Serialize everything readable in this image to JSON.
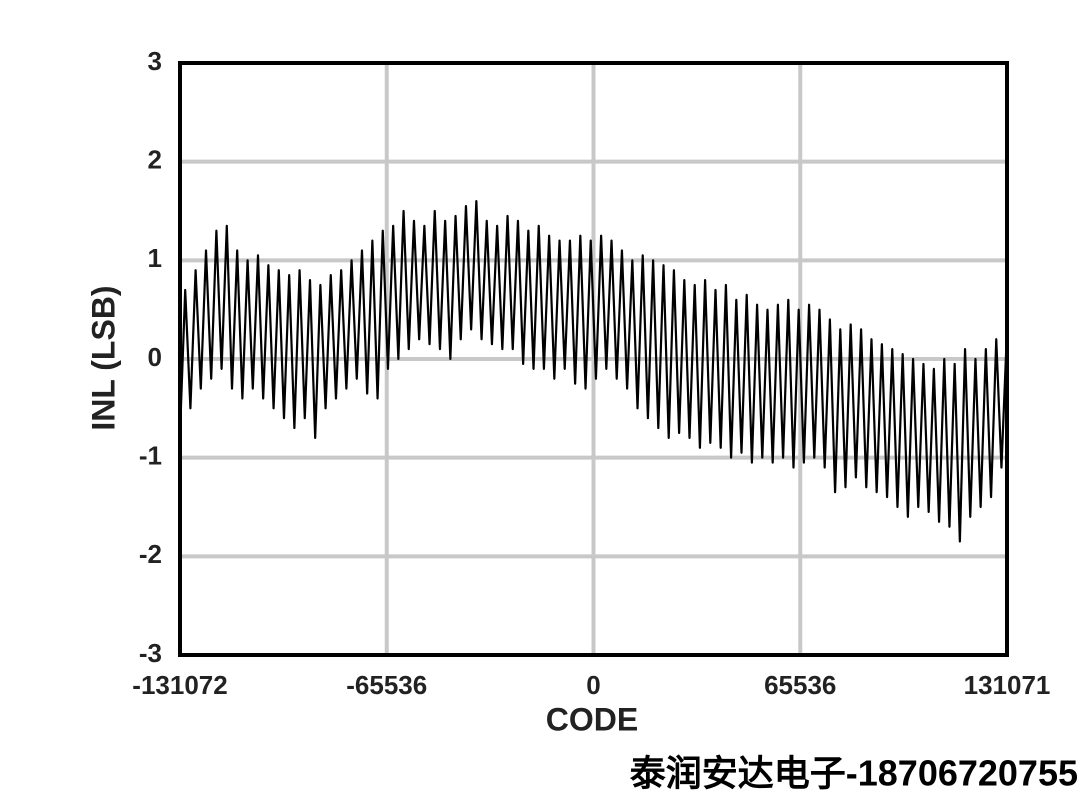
{
  "chart_data": {
    "type": "line",
    "xlabel": "CODE",
    "ylabel": "INL (LSB)",
    "watermark": "泰润安达电子-18706720755",
    "xlim": [
      -131072,
      131071
    ],
    "xticks": [
      -131072,
      -65536,
      0,
      65536,
      131071
    ],
    "ylim": [
      -3,
      3
    ],
    "yticks": [
      -3,
      -2,
      -1,
      0,
      1,
      2,
      3
    ],
    "grid": true,
    "x": [
      -131072,
      -129424,
      -127776,
      -126128,
      -124480,
      -122832,
      -121184,
      -119536,
      -117888,
      -116240,
      -114592,
      -112944,
      -111296,
      -109648,
      -108000,
      -106352,
      -104704,
      -103056,
      -101408,
      -99760,
      -98112,
      -96464,
      -94816,
      -93168,
      -91520,
      -89872,
      -88224,
      -86576,
      -84928,
      -83280,
      -81632,
      -79984,
      -78336,
      -76688,
      -75040,
      -73392,
      -71744,
      -70096,
      -68448,
      -66800,
      -65152,
      -63504,
      -61856,
      -60208,
      -58560,
      -56912,
      -55264,
      -53616,
      -51968,
      -50320,
      -48672,
      -47024,
      -45376,
      -43728,
      -42080,
      -40432,
      -38784,
      -37136,
      -35488,
      -33840,
      -32192,
      -30544,
      -28896,
      -27248,
      -25600,
      -23952,
      -22304,
      -20656,
      -19008,
      -17360,
      -15712,
      -14064,
      -12416,
      -10768,
      -9120,
      -7472,
      -5824,
      -4176,
      -2528,
      -880,
      768,
      2416,
      4064,
      5712,
      7360,
      9008,
      10656,
      12304,
      13952,
      15600,
      17248,
      18896,
      20544,
      22192,
      23840,
      25488,
      27136,
      28784,
      30432,
      32080,
      33728,
      35376,
      37024,
      38672,
      40320,
      41968,
      43616,
      45264,
      46912,
      48560,
      50208,
      51856,
      53504,
      55152,
      56800,
      58448,
      60096,
      61744,
      63392,
      65040,
      66688,
      68336,
      69984,
      71632,
      73280,
      74928,
      76576,
      78224,
      79872,
      81520,
      83168,
      84816,
      86464,
      88112,
      89760,
      91408,
      93056,
      94704,
      96352,
      98000,
      99648,
      101296,
      102944,
      104592,
      106240,
      107888,
      109536,
      111184,
      112832,
      114480,
      116128,
      117776,
      119424,
      121072,
      122720,
      124368,
      126016,
      127664,
      129312,
      130960
    ],
    "series": [
      {
        "color": "#000000",
        "values": [
          -0.75,
          0.7,
          -0.5,
          0.9,
          -0.3,
          1.1,
          -0.2,
          1.3,
          -0.1,
          1.35,
          -0.3,
          1.1,
          -0.4,
          1.0,
          -0.3,
          1.05,
          -0.4,
          0.95,
          -0.5,
          0.9,
          -0.6,
          0.85,
          -0.7,
          0.9,
          -0.6,
          0.8,
          -0.8,
          0.75,
          -0.5,
          0.85,
          -0.4,
          0.9,
          -0.3,
          1.0,
          -0.2,
          1.1,
          -0.35,
          1.2,
          -0.4,
          1.3,
          -0.1,
          1.35,
          0.0,
          1.5,
          0.1,
          1.4,
          0.2,
          1.35,
          0.15,
          1.5,
          0.1,
          1.4,
          0.0,
          1.45,
          0.2,
          1.55,
          0.3,
          1.6,
          0.2,
          1.4,
          0.15,
          1.35,
          0.1,
          1.45,
          0.1,
          1.4,
          -0.05,
          1.3,
          -0.1,
          1.35,
          -0.1,
          1.25,
          -0.2,
          1.2,
          -0.1,
          1.2,
          -0.25,
          1.25,
          -0.3,
          1.2,
          -0.2,
          1.25,
          -0.1,
          1.2,
          -0.2,
          1.1,
          -0.3,
          1.0,
          -0.5,
          1.05,
          -0.6,
          1.0,
          -0.7,
          0.95,
          -0.8,
          0.9,
          -0.75,
          0.8,
          -0.8,
          0.75,
          -0.9,
          0.8,
          -0.85,
          0.7,
          -0.9,
          0.75,
          -1.0,
          0.6,
          -0.95,
          0.65,
          -1.05,
          0.55,
          -1.0,
          0.5,
          -1.05,
          0.55,
          -1.0,
          0.6,
          -1.1,
          0.5,
          -1.05,
          0.55,
          -1.0,
          0.5,
          -1.1,
          0.4,
          -1.35,
          0.3,
          -1.3,
          0.35,
          -1.2,
          0.3,
          -1.3,
          0.2,
          -1.35,
          0.15,
          -1.4,
          0.1,
          -1.5,
          0.05,
          -1.6,
          0.0,
          -1.5,
          -0.05,
          -1.55,
          -0.1,
          -1.65,
          0.0,
          -1.7,
          -0.05,
          -1.85,
          0.1,
          -1.6,
          0.0,
          -1.5,
          0.1,
          -1.4,
          0.2,
          -1.1,
          0.2
        ]
      }
    ]
  }
}
